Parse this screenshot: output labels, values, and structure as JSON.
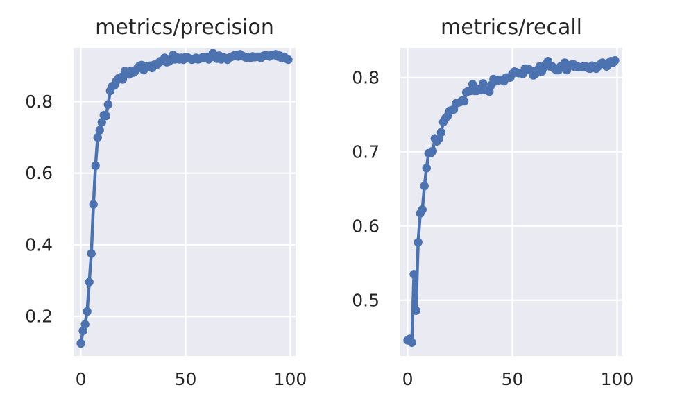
{
  "chart_data": [
    {
      "type": "line",
      "title": "metrics/precision",
      "xlabel": "",
      "ylabel": "",
      "xlim": [
        -3.5,
        102.5
      ],
      "ylim": [
        0.09,
        0.95
      ],
      "xticks": [
        0,
        50,
        100
      ],
      "xtick_labels": [
        "0",
        "50",
        "100"
      ],
      "yticks": [
        0.2,
        0.4,
        0.6,
        0.8
      ],
      "ytick_labels": [
        "0.2",
        "0.4",
        "0.6",
        "0.8"
      ],
      "grid": true,
      "legend": "none",
      "color": "#4c72b0",
      "x": [
        0,
        1,
        2,
        3,
        4,
        5,
        6,
        7,
        8,
        9,
        10,
        11,
        12,
        13,
        14,
        15,
        16,
        17,
        18,
        19,
        20,
        21,
        22,
        23,
        24,
        25,
        26,
        27,
        28,
        29,
        30,
        31,
        32,
        33,
        34,
        35,
        36,
        37,
        38,
        39,
        40,
        41,
        42,
        43,
        44,
        45,
        46,
        47,
        48,
        49,
        50,
        51,
        52,
        53,
        54,
        55,
        56,
        57,
        58,
        59,
        60,
        61,
        62,
        63,
        64,
        65,
        66,
        67,
        68,
        69,
        70,
        71,
        72,
        73,
        74,
        75,
        76,
        77,
        78,
        79,
        80,
        81,
        82,
        83,
        84,
        85,
        86,
        87,
        88,
        89,
        90,
        91,
        92,
        93,
        94,
        95,
        96,
        97,
        98,
        99
      ],
      "y": [
        0.125,
        0.16,
        0.178,
        0.214,
        0.296,
        0.376,
        0.513,
        0.621,
        0.7,
        0.72,
        0.742,
        0.762,
        0.76,
        0.792,
        0.83,
        0.843,
        0.845,
        0.858,
        0.865,
        0.868,
        0.862,
        0.885,
        0.877,
        0.876,
        0.886,
        0.881,
        0.885,
        0.893,
        0.9,
        0.902,
        0.888,
        0.895,
        0.899,
        0.9,
        0.894,
        0.903,
        0.902,
        0.908,
        0.913,
        0.913,
        0.922,
        0.91,
        0.912,
        0.916,
        0.93,
        0.918,
        0.923,
        0.918,
        0.922,
        0.917,
        0.924,
        0.923,
        0.92,
        0.917,
        0.919,
        0.922,
        0.918,
        0.92,
        0.923,
        0.922,
        0.925,
        0.918,
        0.925,
        0.935,
        0.924,
        0.92,
        0.928,
        0.918,
        0.924,
        0.921,
        0.917,
        0.923,
        0.925,
        0.928,
        0.93,
        0.926,
        0.932,
        0.928,
        0.925,
        0.923,
        0.925,
        0.922,
        0.926,
        0.924,
        0.925,
        0.925,
        0.922,
        0.927,
        0.929,
        0.928,
        0.926,
        0.93,
        0.93,
        0.932,
        0.926,
        0.928,
        0.921,
        0.925,
        0.92,
        0.917
      ]
    },
    {
      "type": "line",
      "title": "metrics/recall",
      "xlabel": "",
      "ylabel": "",
      "xlim": [
        -3.5,
        102.5
      ],
      "ylim": [
        0.425,
        0.84
      ],
      "xticks": [
        0,
        50,
        100
      ],
      "xtick_labels": [
        "0",
        "50",
        "100"
      ],
      "yticks": [
        0.5,
        0.6,
        0.7,
        0.8
      ],
      "ytick_labels": [
        "0.5",
        "0.6",
        "0.7",
        "0.8"
      ],
      "grid": true,
      "legend": "none",
      "color": "#4c72b0",
      "x": [
        0,
        1,
        2,
        3,
        4,
        5,
        6,
        7,
        8,
        9,
        10,
        11,
        12,
        13,
        14,
        15,
        16,
        17,
        18,
        19,
        20,
        21,
        22,
        23,
        24,
        25,
        26,
        27,
        28,
        29,
        30,
        31,
        32,
        33,
        34,
        35,
        36,
        37,
        38,
        39,
        40,
        41,
        42,
        43,
        44,
        45,
        46,
        47,
        48,
        49,
        50,
        51,
        52,
        53,
        54,
        55,
        56,
        57,
        58,
        59,
        60,
        61,
        62,
        63,
        64,
        65,
        66,
        67,
        68,
        69,
        70,
        71,
        72,
        73,
        74,
        75,
        76,
        77,
        78,
        79,
        80,
        81,
        82,
        83,
        84,
        85,
        86,
        87,
        88,
        89,
        90,
        91,
        92,
        93,
        94,
        95,
        96,
        97,
        98,
        99
      ],
      "y": [
        0.446,
        0.448,
        0.443,
        0.535,
        0.486,
        0.578,
        0.617,
        0.622,
        0.654,
        0.678,
        0.698,
        0.698,
        0.701,
        0.718,
        0.714,
        0.718,
        0.726,
        0.74,
        0.745,
        0.748,
        0.755,
        0.756,
        0.757,
        0.765,
        0.766,
        0.767,
        0.769,
        0.768,
        0.78,
        0.782,
        0.782,
        0.791,
        0.782,
        0.782,
        0.785,
        0.783,
        0.792,
        0.783,
        0.783,
        0.781,
        0.79,
        0.798,
        0.795,
        0.796,
        0.797,
        0.797,
        0.795,
        0.8,
        0.8,
        0.8,
        0.805,
        0.808,
        0.807,
        0.806,
        0.806,
        0.805,
        0.812,
        0.81,
        0.811,
        0.809,
        0.803,
        0.805,
        0.81,
        0.815,
        0.808,
        0.813,
        0.818,
        0.822,
        0.815,
        0.815,
        0.812,
        0.81,
        0.81,
        0.815,
        0.816,
        0.82,
        0.81,
        0.815,
        0.817,
        0.818,
        0.814,
        0.815,
        0.814,
        0.814,
        0.815,
        0.815,
        0.813,
        0.812,
        0.816,
        0.815,
        0.812,
        0.815,
        0.818,
        0.82,
        0.818,
        0.815,
        0.82,
        0.822,
        0.82,
        0.823
      ]
    }
  ]
}
